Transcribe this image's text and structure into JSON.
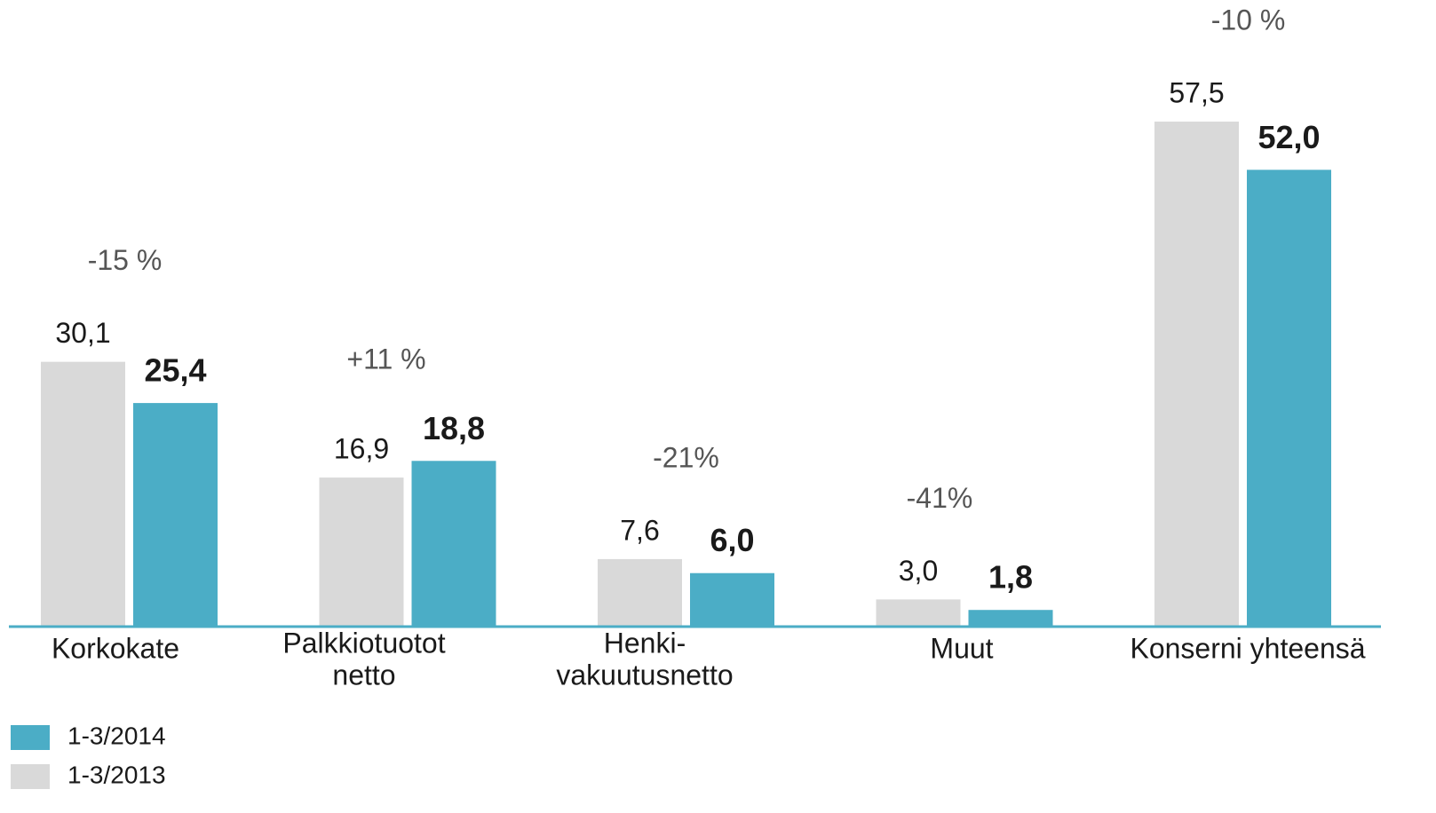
{
  "chart_data": {
    "type": "bar",
    "categories": [
      [
        "Korkokate"
      ],
      [
        "Palkkiotuotot",
        "netto"
      ],
      [
        "Henki-",
        "vakuutusnetto"
      ],
      [
        "Muut"
      ],
      [
        "Konserni yhteensä"
      ]
    ],
    "series": [
      {
        "name": "1-3/2013",
        "color": "#d9d9d9",
        "values": [
          30.1,
          16.9,
          7.6,
          3.0,
          57.5
        ],
        "value_labels": [
          "30,1",
          "16,9",
          "7,6",
          "3,0",
          "57,5"
        ]
      },
      {
        "name": "1-3/2014",
        "color": "#4badc6",
        "values": [
          25.4,
          18.8,
          6.0,
          1.8,
          52.0
        ],
        "value_labels": [
          "25,4",
          "18,8",
          "6,0",
          "1,8",
          "52,0"
        ]
      }
    ],
    "annotations": [
      "-15 %",
      "+11 %",
      "-21%",
      "-41%",
      "-10 %"
    ]
  }
}
